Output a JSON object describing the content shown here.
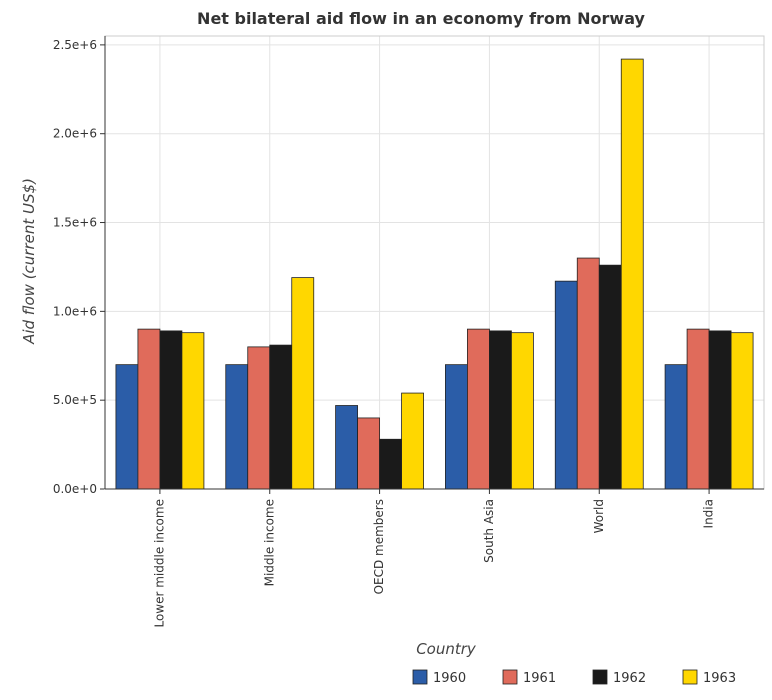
{
  "chart_data": {
    "type": "bar",
    "title": "Net bilateral aid flow in an economy from Norway",
    "xlabel": "Country",
    "ylabel": "Aid flow (current US$)",
    "categories": [
      "Lower middle income",
      "Middle income",
      "OECD members",
      "South Asia",
      "World",
      "India"
    ],
    "series": [
      {
        "name": "1960",
        "color": "#2b5da8",
        "values": [
          700000,
          700000,
          470000,
          700000,
          1170000,
          700000
        ]
      },
      {
        "name": "1961",
        "color": "#e06b5b",
        "values": [
          900000,
          800000,
          400000,
          900000,
          1300000,
          900000
        ]
      },
      {
        "name": "1962",
        "color": "#1a1a1a",
        "values": [
          890000,
          810000,
          280000,
          890000,
          1260000,
          890000
        ]
      },
      {
        "name": "1963",
        "color": "#ffd700",
        "values": [
          880000,
          1190000,
          540000,
          880000,
          2420000,
          880000
        ]
      }
    ],
    "y_ticks": [
      "0.0e+0",
      "5.0e+5",
      "1.0e+6",
      "1.5e+6",
      "2.0e+6",
      "2.5e+6"
    ],
    "y_tick_values": [
      0,
      500000,
      1000000,
      1500000,
      2000000,
      2500000
    ],
    "ylim": [
      0,
      2550000
    ],
    "grid": true,
    "legend_position": "bottom-right"
  }
}
